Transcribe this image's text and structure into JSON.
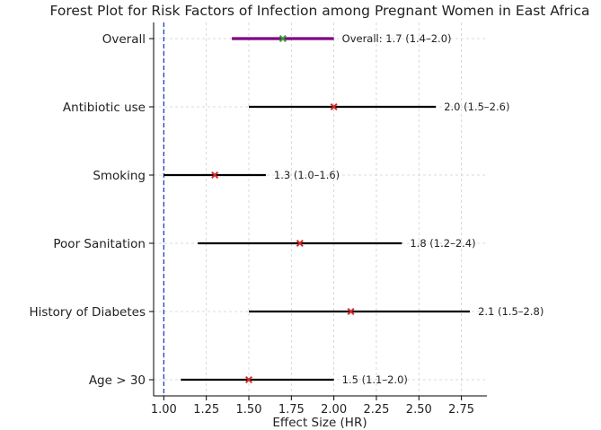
{
  "chart_data": {
    "type": "forest",
    "title": "Forest Plot for Risk Factors of Infection among Pregnant Women in East Africa",
    "xlabel": "Effect Size (HR)",
    "ylabel": "",
    "xlim": [
      0.94,
      2.9
    ],
    "xticks": [
      1.0,
      1.25,
      1.5,
      1.75,
      2.0,
      2.25,
      2.5,
      2.75
    ],
    "xtick_labels": [
      "1.00",
      "1.25",
      "1.50",
      "1.75",
      "2.00",
      "2.25",
      "2.50",
      "2.75"
    ],
    "reference_line": 1.0,
    "grid": true,
    "rows": [
      {
        "label": "Overall",
        "estimate": 1.7,
        "lower": 1.4,
        "upper": 2.0,
        "annotation": "Overall: 1.7 (1.4–2.0)",
        "line_color": "#800080",
        "marker_color": "#2ca02c",
        "is_overall": true
      },
      {
        "label": "Antibiotic use",
        "estimate": 2.0,
        "lower": 1.5,
        "upper": 2.6,
        "annotation": "2.0 (1.5–2.6)",
        "line_color": "#000000",
        "marker_color": "#d62728",
        "is_overall": false
      },
      {
        "label": "Smoking",
        "estimate": 1.3,
        "lower": 1.0,
        "upper": 1.6,
        "annotation": "1.3 (1.0–1.6)",
        "line_color": "#000000",
        "marker_color": "#d62728",
        "is_overall": false
      },
      {
        "label": "Poor Sanitation",
        "estimate": 1.8,
        "lower": 1.2,
        "upper": 2.4,
        "annotation": "1.8 (1.2–2.4)",
        "line_color": "#000000",
        "marker_color": "#d62728",
        "is_overall": false
      },
      {
        "label": "History of Diabetes",
        "estimate": 2.1,
        "lower": 1.5,
        "upper": 2.8,
        "annotation": "2.1 (1.5–2.8)",
        "line_color": "#000000",
        "marker_color": "#d62728",
        "is_overall": false
      },
      {
        "label": "Age > 30",
        "estimate": 1.5,
        "lower": 1.1,
        "upper": 2.0,
        "annotation": "1.5 (1.1–2.0)",
        "line_color": "#000000",
        "marker_color": "#d62728",
        "is_overall": false
      }
    ],
    "reference_line_color": "#1f3fbf"
  }
}
